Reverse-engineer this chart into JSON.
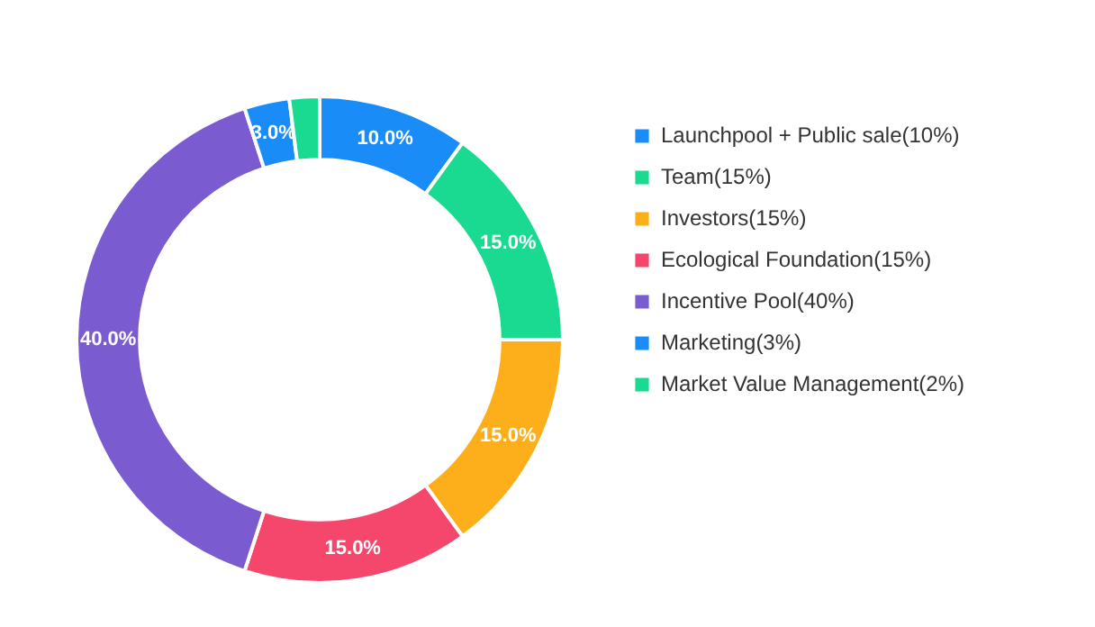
{
  "chart_data": {
    "type": "donut",
    "categories": [
      "Launchpool + Public sale(10%)",
      "Team(15%)",
      "Investors(15%)",
      "Ecological Foundation(15%)",
      "Incentive Pool(40%)",
      "Marketing(3%)",
      "Market Value Management(2%)"
    ],
    "values": [
      10,
      15,
      15,
      15,
      40,
      3,
      2
    ],
    "colors": [
      "#1a8cf7",
      "#1ad991",
      "#fdaf1b",
      "#f5466b",
      "#7b5bd0",
      "#1a8cf7",
      "#1ad991"
    ],
    "value_labels": [
      "10.0%",
      "15.0%",
      "15.0%",
      "15.0%",
      "40.0%",
      "3.0%",
      null
    ],
    "legend": "right"
  }
}
